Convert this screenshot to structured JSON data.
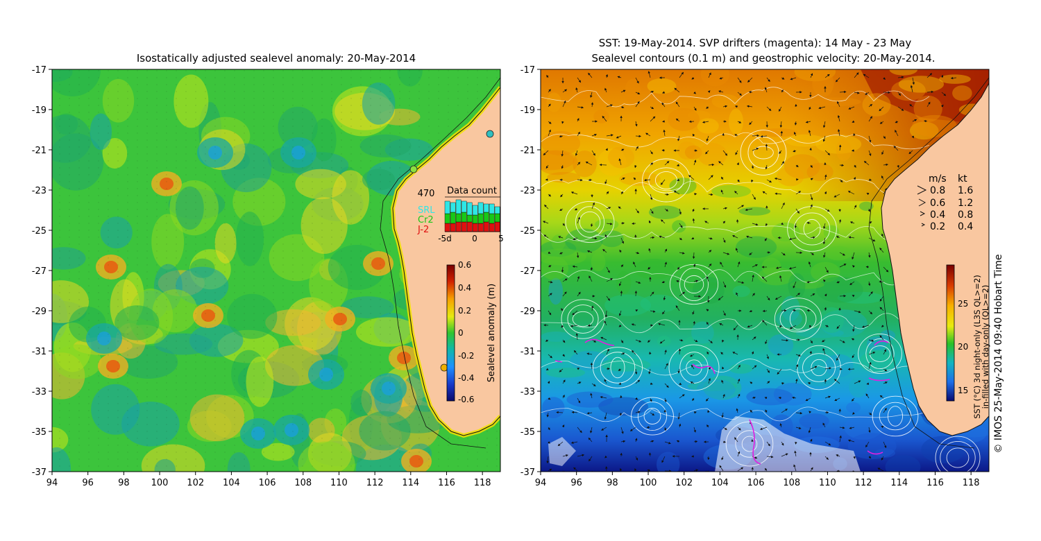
{
  "left_panel": {
    "title": "Isostatically adjusted sealevel anomaly: 20-May-2014",
    "x_ticks": [
      "94",
      "96",
      "98",
      "100",
      "102",
      "104",
      "106",
      "108",
      "110",
      "112",
      "114",
      "116",
      "118"
    ],
    "y_ticks": [
      "-17",
      "-19",
      "-21",
      "-23",
      "-25",
      "-27",
      "-29",
      "-31",
      "-33",
      "-35",
      "-37"
    ],
    "colorbar": {
      "label": "Sealevel anomaly (m)",
      "ticks": [
        "0.6",
        "0.4",
        "0.2",
        "0",
        "-0.2",
        "-0.4",
        "-0.6"
      ]
    },
    "data_count": {
      "title": "Data count",
      "max_value": "470",
      "legend": [
        {
          "label": "SRL",
          "color": "#2fe6e6"
        },
        {
          "label": "Cr2",
          "color": "#18c818"
        },
        {
          "label": "J-2",
          "color": "#e01010"
        }
      ],
      "x_ticks": [
        "-5d",
        "0",
        "5"
      ]
    }
  },
  "right_panel": {
    "title_line1": "SST: 19-May-2014. SVP drifters (magenta): 14 May - 23 May",
    "title_line2": "Sealevel contours (0.1 m) and geostrophic velocity: 20-May-2014.",
    "x_ticks": [
      "94",
      "96",
      "98",
      "100",
      "102",
      "104",
      "106",
      "108",
      "110",
      "112",
      "114",
      "116",
      "118"
    ],
    "y_ticks": [
      "-17",
      "-19",
      "-21",
      "-23",
      "-25",
      "-27",
      "-29",
      "-31",
      "-33",
      "-35",
      "-37"
    ],
    "velocity_legend": {
      "header_ms": "m/s",
      "header_kt": "kt",
      "rows": [
        {
          "ms": "0.8",
          "kt": "1.6"
        },
        {
          "ms": "0.6",
          "kt": "1.2"
        },
        {
          "ms": "0.4",
          "kt": "0.8"
        },
        {
          "ms": "0.2",
          "kt": "0.4"
        }
      ]
    },
    "colorbar": {
      "ticks": [
        "25",
        "20",
        "15"
      ],
      "label_line1": "SST (°C) 3d night-only (L3S QL>=2)",
      "label_line2": "in-filled with day-only (QL>=2)"
    }
  },
  "credit": "© IMOS 25-May-2014 09:40 Hobart Time",
  "colors": {
    "land": "#f9c7a0",
    "ssh_green": "#2ec42e",
    "ssh_yellow": "#cfe81e",
    "sst_warm": "#c84a00",
    "sst_cool": "#1aa2e0"
  }
}
